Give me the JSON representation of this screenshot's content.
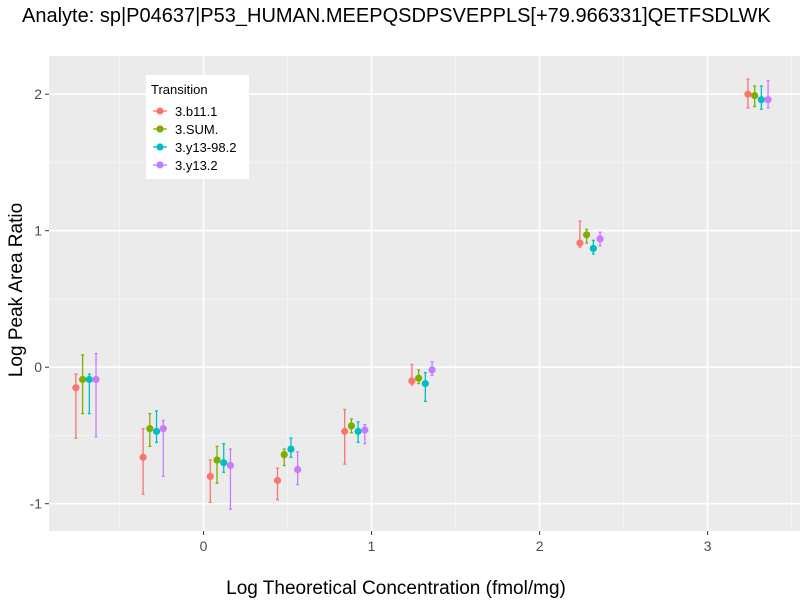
{
  "chart_data": {
    "type": "scatter",
    "title": "Analyte: sp|P04637|P53_HUMAN.MEEPQSDPSVEPPLS[+79.966331]QETFSDLWK",
    "xlabel": "Log Theoretical Concentration (fmol/mg)",
    "ylabel": "Log Peak Area Ratio",
    "xlim": [
      -0.92,
      3.55
    ],
    "ylim": [
      -1.2,
      2.28
    ],
    "x_ticks": [
      0,
      1,
      2,
      3
    ],
    "x_tick_labels": [
      "0",
      "1",
      "2",
      "3"
    ],
    "y_ticks": [
      -1,
      0,
      1,
      2
    ],
    "y_tick_labels": [
      "-1",
      "0",
      "1",
      "2"
    ],
    "grid": true,
    "error_bars": true,
    "legend": {
      "title": "Transition",
      "position": "top-left-inside"
    },
    "series": [
      {
        "name": "3.b11.1",
        "color": "#F8766D",
        "points": [
          {
            "x": -0.7,
            "y": -0.15,
            "err_low": -0.52,
            "err_high": -0.05
          },
          {
            "x": -0.3,
            "y": -0.66,
            "err_low": -0.93,
            "err_high": -0.45
          },
          {
            "x": 0.1,
            "y": -0.8,
            "err_low": -0.99,
            "err_high": -0.68
          },
          {
            "x": 0.5,
            "y": -0.83,
            "err_low": -0.97,
            "err_high": -0.74
          },
          {
            "x": 0.9,
            "y": -0.47,
            "err_low": -0.71,
            "err_high": -0.31
          },
          {
            "x": 1.3,
            "y": -0.1,
            "err_low": -0.13,
            "err_high": 0.02
          },
          {
            "x": 2.3,
            "y": 0.91,
            "err_low": 0.88,
            "err_high": 1.07
          },
          {
            "x": 3.3,
            "y": 2.0,
            "err_low": 1.9,
            "err_high": 2.11
          }
        ]
      },
      {
        "name": "3.SUM.",
        "color": "#7CAE00",
        "points": [
          {
            "x": -0.7,
            "y": -0.09,
            "err_low": -0.34,
            "err_high": 0.09
          },
          {
            "x": -0.3,
            "y": -0.45,
            "err_low": -0.58,
            "err_high": -0.34
          },
          {
            "x": 0.1,
            "y": -0.68,
            "err_low": -0.85,
            "err_high": -0.58
          },
          {
            "x": 0.5,
            "y": -0.64,
            "err_low": -0.72,
            "err_high": -0.6
          },
          {
            "x": 0.9,
            "y": -0.43,
            "err_low": -0.48,
            "err_high": -0.38
          },
          {
            "x": 1.3,
            "y": -0.08,
            "err_low": -0.12,
            "err_high": -0.02
          },
          {
            "x": 2.3,
            "y": 0.97,
            "err_low": 0.91,
            "err_high": 1.01
          },
          {
            "x": 3.3,
            "y": 1.99,
            "err_low": 1.91,
            "err_high": 2.06
          }
        ]
      },
      {
        "name": "3.y13-98.2",
        "color": "#00BFC4",
        "points": [
          {
            "x": -0.7,
            "y": -0.09,
            "err_low": -0.34,
            "err_high": -0.05
          },
          {
            "x": -0.3,
            "y": -0.47,
            "err_low": -0.55,
            "err_high": -0.32
          },
          {
            "x": 0.1,
            "y": -0.7,
            "err_low": -0.77,
            "err_high": -0.56
          },
          {
            "x": 0.5,
            "y": -0.6,
            "err_low": -0.66,
            "err_high": -0.52
          },
          {
            "x": 0.9,
            "y": -0.47,
            "err_low": -0.55,
            "err_high": -0.4
          },
          {
            "x": 1.3,
            "y": -0.12,
            "err_low": -0.25,
            "err_high": -0.04
          },
          {
            "x": 2.3,
            "y": 0.87,
            "err_low": 0.83,
            "err_high": 0.93
          },
          {
            "x": 3.3,
            "y": 1.96,
            "err_low": 1.89,
            "err_high": 2.06
          }
        ]
      },
      {
        "name": "3.y13.2",
        "color": "#C77CFF",
        "points": [
          {
            "x": -0.7,
            "y": -0.09,
            "err_low": -0.51,
            "err_high": 0.1
          },
          {
            "x": -0.3,
            "y": -0.45,
            "err_low": -0.8,
            "err_high": -0.39
          },
          {
            "x": 0.1,
            "y": -0.72,
            "err_low": -1.04,
            "err_high": -0.6
          },
          {
            "x": 0.5,
            "y": -0.75,
            "err_low": -0.86,
            "err_high": -0.62
          },
          {
            "x": 0.9,
            "y": -0.46,
            "err_low": -0.56,
            "err_high": -0.42
          },
          {
            "x": 1.3,
            "y": -0.02,
            "err_low": -0.06,
            "err_high": 0.04
          },
          {
            "x": 2.3,
            "y": 0.94,
            "err_low": 0.89,
            "err_high": 0.99
          },
          {
            "x": 3.3,
            "y": 1.96,
            "err_low": 1.9,
            "err_high": 2.1
          }
        ]
      }
    ]
  }
}
